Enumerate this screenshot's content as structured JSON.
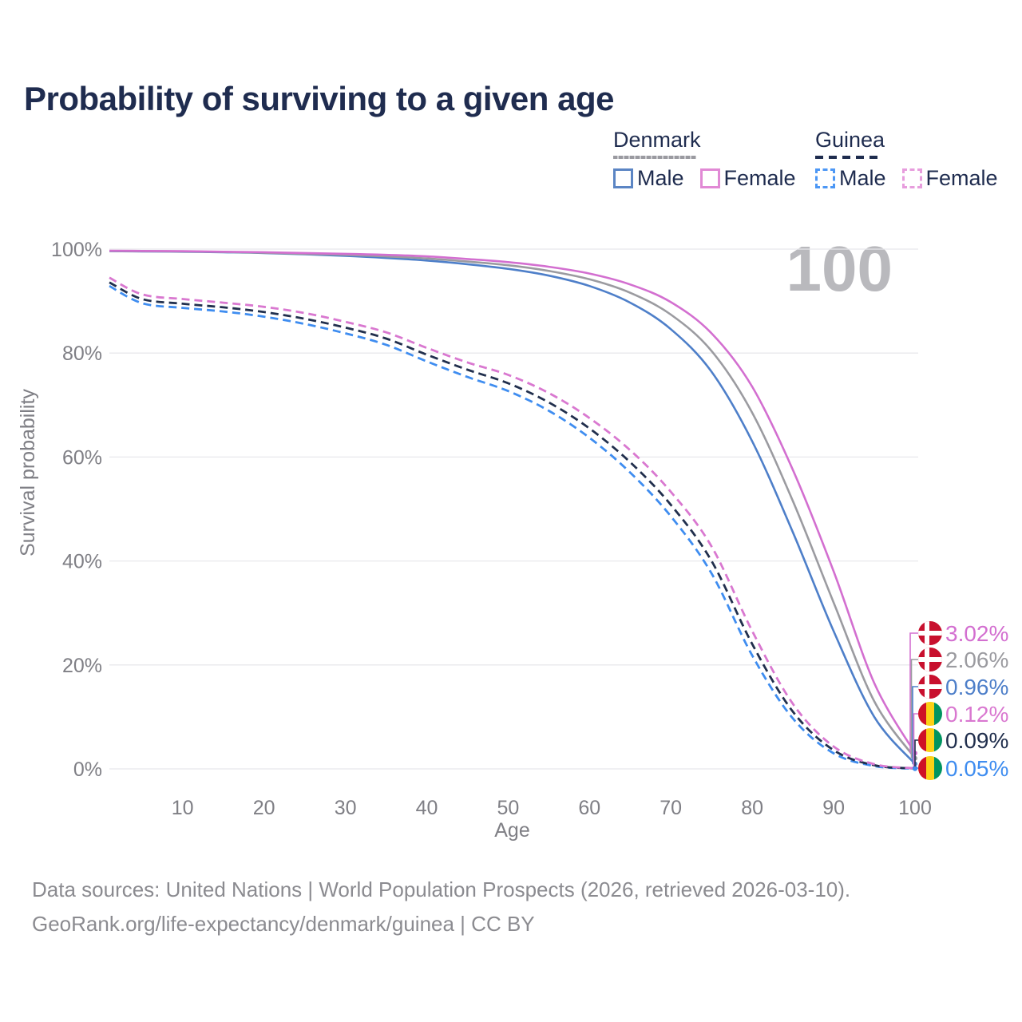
{
  "title": "Probability of surviving to a given age",
  "watermark": "100",
  "legend": {
    "groups": [
      {
        "id": "denmark",
        "label": "Denmark",
        "line_style": "solid",
        "underline_color": "#9a9aa0",
        "items": [
          {
            "id": "denmark-male",
            "label": "Male",
            "color": "#5b85c4"
          },
          {
            "id": "denmark-female",
            "label": "Female",
            "color": "#e189d5"
          }
        ]
      },
      {
        "id": "guinea",
        "label": "Guinea",
        "line_style": "dashed",
        "underline_color": "#1e2c4e",
        "items": [
          {
            "id": "guinea-male",
            "label": "Male",
            "color": "#4c97f5"
          },
          {
            "id": "guinea-female",
            "label": "Female",
            "color": "#e79ddd"
          }
        ]
      }
    ]
  },
  "chart_data": {
    "type": "line",
    "xlabel": "Age",
    "ylabel": "Survival probability",
    "x_range": [
      1,
      100
    ],
    "y_range": [
      0,
      100
    ],
    "grid": "horizontal",
    "x_ticks": [
      10,
      20,
      30,
      40,
      50,
      60,
      70,
      80,
      90,
      100
    ],
    "y_ticks": [
      {
        "value": 100,
        "label": "100%"
      },
      {
        "value": 80,
        "label": "80%"
      },
      {
        "value": 60,
        "label": "60%"
      },
      {
        "value": 40,
        "label": "40%"
      },
      {
        "value": 20,
        "label": "20%"
      },
      {
        "value": 0,
        "label": "0%"
      }
    ],
    "ages": [
      1,
      5,
      10,
      15,
      20,
      25,
      30,
      35,
      40,
      45,
      50,
      55,
      60,
      65,
      70,
      75,
      80,
      85,
      90,
      95,
      100
    ],
    "series": [
      {
        "id": "denmark-female",
        "country": "Denmark",
        "sex": "Female",
        "line": "solid",
        "color": "#d36fd0",
        "flag": "denmark",
        "end_label": "3.02%",
        "end_value": 3.02,
        "values": [
          99.7,
          99.65,
          99.6,
          99.5,
          99.4,
          99.25,
          99.1,
          98.9,
          98.6,
          98.1,
          97.5,
          96.6,
          95.3,
          93.2,
          89.8,
          83.8,
          73.5,
          57.5,
          38.0,
          16.5,
          3.02
        ]
      },
      {
        "id": "denmark-both",
        "country": "Denmark",
        "sex": "Both sexes",
        "line": "solid",
        "color": "#9b9ba0",
        "flag": "denmark",
        "end_label": "2.06%",
        "end_value": 2.06,
        "values": [
          99.65,
          99.6,
          99.55,
          99.45,
          99.3,
          99.1,
          98.9,
          98.6,
          98.2,
          97.6,
          96.9,
          95.8,
          94.2,
          91.6,
          87.4,
          80.4,
          68.5,
          51.5,
          32.0,
          13.0,
          2.06
        ]
      },
      {
        "id": "denmark-male",
        "country": "Denmark",
        "sex": "Male",
        "line": "solid",
        "color": "#4e7fc9",
        "flag": "denmark",
        "end_label": "0.96%",
        "end_value": 0.96,
        "values": [
          99.6,
          99.55,
          99.5,
          99.4,
          99.25,
          99.0,
          98.7,
          98.3,
          97.8,
          97.1,
          96.2,
          94.9,
          92.9,
          89.7,
          84.6,
          76.4,
          63.0,
          45.5,
          26.5,
          10.0,
          0.96
        ]
      },
      {
        "id": "guinea-female",
        "country": "Guinea",
        "sex": "Female",
        "line": "dashed",
        "color": "#d978d0",
        "flag": "guinea",
        "end_label": "0.12%",
        "end_value": 0.12,
        "values": [
          94.5,
          91.3,
          90.4,
          89.7,
          88.9,
          87.7,
          86.0,
          84.0,
          81.0,
          78.2,
          75.8,
          72.3,
          67.5,
          61.3,
          53.3,
          42.8,
          26.5,
          12.5,
          4.3,
          0.9,
          0.12
        ]
      },
      {
        "id": "guinea-both",
        "country": "Guinea",
        "sex": "Both sexes",
        "line": "dashed",
        "color": "#212f4d",
        "flag": "guinea",
        "end_label": "0.09%",
        "end_value": 0.09,
        "values": [
          93.6,
          90.4,
          89.5,
          88.8,
          87.9,
          86.6,
          84.9,
          82.8,
          79.7,
          76.8,
          74.2,
          70.5,
          65.5,
          59.0,
          50.8,
          40.0,
          24.0,
          11.0,
          3.6,
          0.7,
          0.09
        ]
      },
      {
        "id": "guinea-male",
        "country": "Guinea",
        "sex": "Male",
        "line": "dashed",
        "color": "#3f8df0",
        "flag": "guinea",
        "end_label": "0.05%",
        "end_value": 0.05,
        "values": [
          92.9,
          89.6,
          88.7,
          88.0,
          87.0,
          85.6,
          83.8,
          81.6,
          78.4,
          75.4,
          72.7,
          68.9,
          63.7,
          57.0,
          48.6,
          37.6,
          21.8,
          9.7,
          3.0,
          0.55,
          0.05
        ]
      }
    ],
    "flags": {
      "denmark": {
        "background": "#c8102e",
        "cross": "#ffffff"
      },
      "guinea": {
        "stripes": [
          "#ce1126",
          "#fcd116",
          "#009460"
        ]
      }
    }
  },
  "footer": {
    "line1": "Data sources: United Nations | World Population Prospects (2026, retrieved 2026-03-10).",
    "line2": "GeoRank.org/life-expectancy/denmark/guinea | CC BY"
  }
}
